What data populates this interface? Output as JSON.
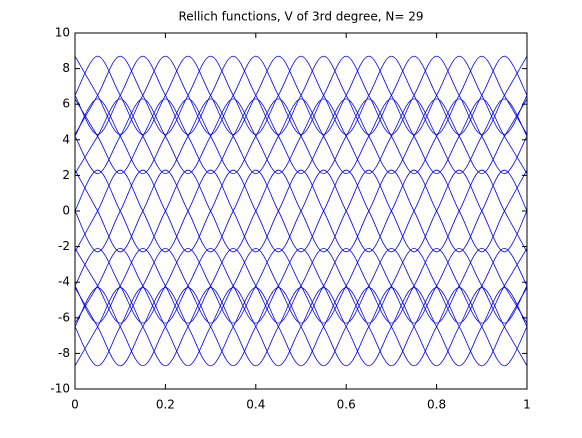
{
  "chart_data": {
    "type": "line",
    "title": "Rellich functions, V of 3rd degree,  N= 29",
    "color": "#0000ff",
    "x": [
      0,
      0.05,
      0.1,
      0.15,
      0.2,
      0.25,
      0.3,
      0.35,
      0.4,
      0.45,
      0.5,
      0.55,
      0.6,
      0.65,
      0.7,
      0.75,
      0.8,
      0.85,
      0.9,
      0.95,
      1
    ],
    "series": [
      {
        "values": [
          8.7,
          6.5,
          4.3,
          6.5,
          8.7,
          6.5,
          4.3,
          6.5,
          8.7,
          6.5,
          4.3,
          6.5,
          8.7,
          6.5,
          4.3,
          6.5,
          8.7,
          6.5,
          4.3,
          6.5,
          8.7
        ]
      },
      {
        "values": [
          6.5,
          4.3,
          6.5,
          8.7,
          6.5,
          4.3,
          6.5,
          8.7,
          6.5,
          4.3,
          6.5,
          8.7,
          6.5,
          4.3,
          6.5,
          8.7,
          6.5,
          4.3,
          6.5,
          8.7,
          6.5
        ]
      },
      {
        "values": [
          4.3,
          6.5,
          8.7,
          6.5,
          4.3,
          6.5,
          8.7,
          6.5,
          4.3,
          6.5,
          8.7,
          6.5,
          4.3,
          6.5,
          8.7,
          6.5,
          4.3,
          6.5,
          8.7,
          6.5,
          4.3
        ]
      },
      {
        "values": [
          6.5,
          8.7,
          6.5,
          4.3,
          6.5,
          8.7,
          6.5,
          4.3,
          6.5,
          8.7,
          6.5,
          4.3,
          6.5,
          8.7,
          6.5,
          4.3,
          6.5,
          8.7,
          6.5,
          4.3,
          6.5
        ]
      },
      {
        "values": [
          6.3,
          4.2,
          2.1,
          4.2,
          6.3,
          4.2,
          2.1,
          4.2,
          6.3,
          4.2,
          2.1,
          4.2,
          6.3,
          4.2,
          2.1,
          4.2,
          6.3,
          4.2,
          2.1,
          4.2,
          6.3
        ]
      },
      {
        "values": [
          4.2,
          2.1,
          4.2,
          6.3,
          4.2,
          2.1,
          4.2,
          6.3,
          4.2,
          2.1,
          4.2,
          6.3,
          4.2,
          2.1,
          4.2,
          6.3,
          4.2,
          2.1,
          4.2,
          6.3,
          4.2
        ]
      },
      {
        "values": [
          2.1,
          4.2,
          6.3,
          4.2,
          2.1,
          4.2,
          6.3,
          4.2,
          2.1,
          4.2,
          6.3,
          4.2,
          2.1,
          4.2,
          6.3,
          4.2,
          2.1,
          4.2,
          6.3,
          4.2,
          2.1
        ]
      },
      {
        "values": [
          4.2,
          6.3,
          4.2,
          2.1,
          4.2,
          6.3,
          4.2,
          2.1,
          4.2,
          6.3,
          4.2,
          2.1,
          4.2,
          6.3,
          4.2,
          2.1,
          4.2,
          6.3,
          4.2,
          2.1,
          4.2
        ]
      },
      {
        "values": [
          2.3,
          0,
          -2.3,
          0,
          2.3,
          0,
          -2.3,
          0,
          2.3,
          0,
          -2.3,
          0,
          2.3,
          0,
          -2.3,
          0,
          2.3,
          0,
          -2.3,
          0,
          2.3
        ]
      },
      {
        "values": [
          0,
          -2.3,
          0,
          2.3,
          0,
          -2.3,
          0,
          2.3,
          0,
          -2.3,
          0,
          2.3,
          0,
          -2.3,
          0,
          2.3,
          0,
          -2.3,
          0,
          2.3,
          0
        ]
      },
      {
        "values": [
          -2.3,
          0,
          2.3,
          0,
          -2.3,
          0,
          2.3,
          0,
          -2.3,
          0,
          2.3,
          0,
          -2.3,
          0,
          2.3,
          0,
          -2.3,
          0,
          2.3,
          0,
          -2.3
        ]
      },
      {
        "values": [
          0,
          2.3,
          0,
          -2.3,
          0,
          2.3,
          0,
          -2.3,
          0,
          2.3,
          0,
          -2.3,
          0,
          2.3,
          0,
          -2.3,
          0,
          2.3,
          0,
          -2.3,
          0
        ]
      },
      {
        "values": [
          -2.1,
          -4.2,
          -6.3,
          -4.2,
          -2.1,
          -4.2,
          -6.3,
          -4.2,
          -2.1,
          -4.2,
          -6.3,
          -4.2,
          -2.1,
          -4.2,
          -6.3,
          -4.2,
          -2.1,
          -4.2,
          -6.3,
          -4.2,
          -2.1
        ]
      },
      {
        "values": [
          -4.2,
          -6.3,
          -4.2,
          -2.1,
          -4.2,
          -6.3,
          -4.2,
          -2.1,
          -4.2,
          -6.3,
          -4.2,
          -2.1,
          -4.2,
          -6.3,
          -4.2,
          -2.1,
          -4.2,
          -6.3,
          -4.2,
          -2.1,
          -4.2
        ]
      },
      {
        "values": [
          -6.3,
          -4.2,
          -2.1,
          -4.2,
          -6.3,
          -4.2,
          -2.1,
          -4.2,
          -6.3,
          -4.2,
          -2.1,
          -4.2,
          -6.3,
          -4.2,
          -2.1,
          -4.2,
          -6.3,
          -4.2,
          -2.1,
          -4.2,
          -6.3
        ]
      },
      {
        "values": [
          -4.2,
          -2.1,
          -4.2,
          -6.3,
          -4.2,
          -2.1,
          -4.2,
          -6.3,
          -4.2,
          -2.1,
          -4.2,
          -6.3,
          -4.2,
          -2.1,
          -4.2,
          -6.3,
          -4.2,
          -2.1,
          -4.2,
          -6.3,
          -4.2
        ]
      },
      {
        "values": [
          -4.3,
          -6.5,
          -8.7,
          -6.5,
          -4.3,
          -6.5,
          -8.7,
          -6.5,
          -4.3,
          -6.5,
          -8.7,
          -6.5,
          -4.3,
          -6.5,
          -8.7,
          -6.5,
          -4.3,
          -6.5,
          -8.7,
          -6.5,
          -4.3
        ]
      },
      {
        "values": [
          -6.5,
          -8.7,
          -6.5,
          -4.3,
          -6.5,
          -8.7,
          -6.5,
          -4.3,
          -6.5,
          -8.7,
          -6.5,
          -4.3,
          -6.5,
          -8.7,
          -6.5,
          -4.3,
          -6.5,
          -8.7,
          -6.5,
          -4.3,
          -6.5
        ]
      },
      {
        "values": [
          -8.7,
          -6.5,
          -4.3,
          -6.5,
          -8.7,
          -6.5,
          -4.3,
          -6.5,
          -8.7,
          -6.5,
          -4.3,
          -6.5,
          -8.7,
          -6.5,
          -4.3,
          -6.5,
          -8.7,
          -6.5,
          -4.3,
          -6.5,
          -8.7
        ]
      },
      {
        "values": [
          -6.5,
          -4.3,
          -6.5,
          -8.7,
          -6.5,
          -4.3,
          -6.5,
          -8.7,
          -6.5,
          -4.3,
          -6.5,
          -8.7,
          -6.5,
          -4.3,
          -6.5,
          -8.7,
          -6.5,
          -4.3,
          -6.5,
          -8.7,
          -6.5
        ]
      }
    ],
    "xlim": [
      0,
      1
    ],
    "xticks": [
      0,
      0.2,
      0.4,
      0.6,
      0.8,
      1
    ],
    "ylim": [
      -10,
      10
    ],
    "yticks": [
      -10,
      -8,
      -6,
      -4,
      -2,
      0,
      2,
      4,
      6,
      8,
      10
    ]
  }
}
